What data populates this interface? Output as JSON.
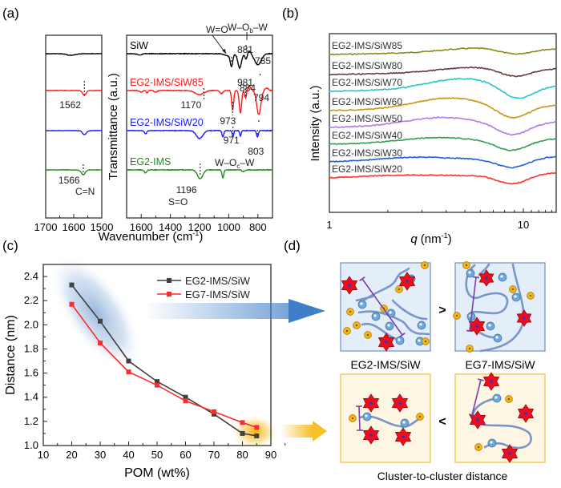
{
  "panel_labels": {
    "a": "(a)",
    "b": "(b)",
    "c": "(c)",
    "d": "(d)"
  },
  "chart_data": [
    {
      "id": "a",
      "type": "line",
      "title": "",
      "xlabel": "Wavenumber (cm⁻¹)",
      "ylabel": "Transmittance (a.u.)",
      "x_reversed": true,
      "subpanels": [
        {
          "xlim": [
            1700,
            1500
          ],
          "xticks": [
            "1700",
            "1600",
            "1500"
          ]
        },
        {
          "xlim": [
            1700,
            700
          ],
          "xticks": [
            "1600",
            "1400",
            "1200",
            "1000",
            "800"
          ]
        }
      ],
      "series": [
        {
          "name": "SiW",
          "color": "#000000",
          "annotations": [
            {
              "label": "981",
              "x": 981
            },
            {
              "label": "881",
              "x": 881
            },
            {
              "label": "785",
              "x": 785
            }
          ]
        },
        {
          "name": "EG2-IMS/SiW85",
          "color": "#ff1a1a",
          "annotations": [
            {
              "label": "1562",
              "x": 1562
            },
            {
              "label": "1170",
              "x": 1170
            },
            {
              "label": "973",
              "x": 973
            },
            {
              "label": "884",
              "x": 884
            },
            {
              "label": "794",
              "x": 794
            }
          ]
        },
        {
          "name": "EG2-IMS/SiW20",
          "color": "#1a1aff",
          "annotations": [
            {
              "label": "971",
              "x": 971
            },
            {
              "label": "803",
              "x": 803
            }
          ]
        },
        {
          "name": "EG2-IMS",
          "color": "#1f8c1f",
          "annotations": [
            {
              "label": "1566",
              "x": 1566
            },
            {
              "label": "1196",
              "x": 1196
            }
          ]
        }
      ],
      "bond_labels": {
        "w_o": "W=O",
        "w_ob_w": "W–Oₕ–W",
        "w_oc_w": "W–Oₒ–W",
        "c_n": "C=N",
        "s_o": "S=O"
      },
      "bond_label_parts": {
        "w_ob_w_pre": "W–O",
        "w_ob_w_sub": "b",
        "w_ob_w_post": "–W",
        "w_oc_w_pre": "W–O",
        "w_oc_w_sub": "c",
        "w_oc_w_post": "–W"
      }
    },
    {
      "id": "b",
      "type": "line",
      "title": "",
      "xlabel": "q (nm⁻¹)",
      "xlabel_var": "q",
      "xlabel_unit": "(nm",
      "xlabel_exp": "-1",
      "xlabel_close": ")",
      "ylabel": "Intensity (a.u.)",
      "xscale": "log",
      "xlim": [
        1,
        16
      ],
      "xticks": [
        "1",
        "10"
      ],
      "series": [
        {
          "name": "EG2-IMS/SiW85",
          "color": "#8c8c1a",
          "peak_q": 5.8,
          "min_q": 9.0
        },
        {
          "name": "EG2-IMS/SiW80",
          "color": "#6b3a3a",
          "peak_q": 5.6,
          "min_q": 9.0
        },
        {
          "name": "EG2-IMS/SiW70",
          "color": "#26c6c6",
          "peak_q": 4.8,
          "min_q": 9.3
        },
        {
          "name": "EG2-IMS/SiW60",
          "color": "#c8960f",
          "peak_q": 4.1,
          "min_q": 8.8
        },
        {
          "name": "EG2-IMS/SiW50",
          "color": "#b478e6",
          "peak_q": 3.7,
          "min_q": 8.8
        },
        {
          "name": "EG2-IMS/SiW40",
          "color": "#2e9e50",
          "peak_q": 3.5,
          "min_q": 8.7
        },
        {
          "name": "EG2-IMS/SiW30",
          "color": "#1f5fd8",
          "peak_q": 2.7,
          "min_q": 8.8
        },
        {
          "name": "EG2-IMS/SiW20",
          "color": "#ff3030",
          "peak_q": 2.3,
          "min_q": 8.8
        }
      ]
    },
    {
      "id": "c",
      "type": "line",
      "title": "",
      "xlabel": "POM (wt%)",
      "ylabel": "Distance (nm)",
      "xlim": [
        10,
        90
      ],
      "ylim": [
        1.0,
        2.5
      ],
      "xticks": [
        10,
        20,
        30,
        40,
        50,
        60,
        70,
        80,
        90
      ],
      "yticks": [
        1.0,
        1.2,
        1.4,
        1.6,
        1.8,
        2.0,
        2.2,
        2.4
      ],
      "ytick_labels": [
        "1.0",
        "1.2",
        "1.4",
        "1.6",
        "1.8",
        "2.0",
        "2.2",
        "2.4"
      ],
      "legend_position": "top-right",
      "x": [
        20,
        30,
        40,
        50,
        60,
        70,
        80,
        85
      ],
      "series": [
        {
          "name": "EG2-IMS/SiW",
          "color": "#404040",
          "values": [
            2.33,
            2.03,
            1.7,
            1.53,
            1.4,
            1.26,
            1.1,
            1.08
          ]
        },
        {
          "name": "EG7-IMS/SiW",
          "color": "#ff2a2a",
          "values": [
            2.17,
            1.85,
            1.61,
            1.5,
            1.37,
            1.28,
            1.19,
            1.15
          ]
        }
      ]
    }
  ],
  "schematic": {
    "top_left_caption": "EG2-IMS/SiW",
    "top_right_caption": "EG7-IMS/SiW",
    "top_comparator": ">",
    "bottom_comparator": "<",
    "bottom_caption": "Cluster-to-cluster distance",
    "colors": {
      "low_pom_bg": "#e4eef9",
      "low_pom_border": "#6e8fc4",
      "high_pom_bg": "#fdf6e2",
      "high_pom_border": "#f0c23a",
      "cluster": "#e8101c",
      "cation": "#6fa8dc",
      "anion": "#f2b411",
      "chain": "#7896c8",
      "bracket": "#7a3fa8",
      "arrow_blue": "#3f7fc8",
      "arrow_yellow": "#f7c028"
    }
  }
}
